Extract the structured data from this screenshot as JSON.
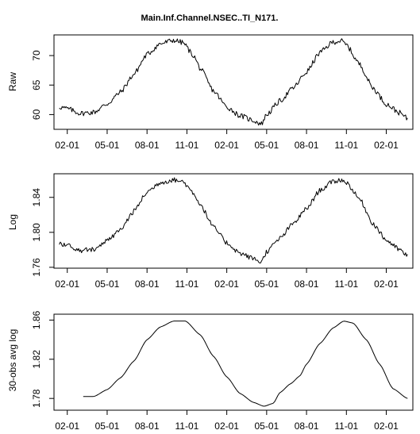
{
  "title": "Main.Inf.Channel.NSEC..TI_N171.",
  "chart_data": [
    {
      "type": "line",
      "ylabel": "Raw",
      "ylim": [
        57.5,
        73.5
      ],
      "yticks": [
        60,
        65,
        70
      ],
      "ytick_labels": [
        "60",
        "65",
        "70"
      ],
      "xlim": [
        0,
        27
      ],
      "xticks": [
        1,
        4,
        7,
        10,
        13,
        16,
        19,
        22,
        25
      ],
      "xtick_labels": [
        "02-01",
        "05-01",
        "08-01",
        "11-01",
        "02-01",
        "05-01",
        "08-01",
        "11-01",
        "02-01"
      ],
      "grid": false,
      "noise": 0.45,
      "points": [
        [
          0.4,
          61.3
        ],
        [
          1,
          61
        ],
        [
          2,
          60.2
        ],
        [
          3,
          60.4
        ],
        [
          4,
          61.8
        ],
        [
          5,
          63.8
        ],
        [
          6,
          66.8
        ],
        [
          7,
          70.2
        ],
        [
          8,
          72
        ],
        [
          9,
          72.6
        ],
        [
          9.7,
          72.2
        ],
        [
          10.5,
          70
        ],
        [
          11,
          67.8
        ],
        [
          12,
          64
        ],
        [
          13,
          61.3
        ],
        [
          14,
          59.8
        ],
        [
          15,
          59
        ],
        [
          15.6,
          58.4
        ],
        [
          16,
          60
        ],
        [
          17,
          62.3
        ],
        [
          18,
          64.5
        ],
        [
          19,
          67.2
        ],
        [
          20,
          70.5
        ],
        [
          21,
          72.3
        ],
        [
          21.6,
          72.5
        ],
        [
          22,
          71.8
        ],
        [
          23,
          68.5
        ],
        [
          24,
          64.5
        ],
        [
          25,
          61.8
        ],
        [
          26,
          60.3
        ],
        [
          26.6,
          59.3
        ]
      ]
    },
    {
      "type": "line",
      "ylabel": "Log",
      "ylim": [
        1.759,
        1.867
      ],
      "yticks": [
        1.76,
        1.8,
        1.84
      ],
      "ytick_labels": [
        "1.76",
        "1.80",
        "1.84"
      ],
      "xlim": [
        0,
        27
      ],
      "xticks": [
        1,
        4,
        7,
        10,
        13,
        16,
        19,
        22,
        25
      ],
      "xtick_labels": [
        "02-01",
        "05-01",
        "08-01",
        "11-01",
        "02-01",
        "05-01",
        "08-01",
        "11-01",
        "02-01"
      ],
      "grid": false,
      "noise": 0.0028,
      "points": [
        [
          0.4,
          1.788
        ],
        [
          1,
          1.785
        ],
        [
          2,
          1.779
        ],
        [
          3,
          1.781
        ],
        [
          4,
          1.79
        ],
        [
          5,
          1.803
        ],
        [
          6,
          1.824
        ],
        [
          7,
          1.846
        ],
        [
          8,
          1.857
        ],
        [
          9,
          1.86
        ],
        [
          9.7,
          1.858
        ],
        [
          10.5,
          1.845
        ],
        [
          11,
          1.832
        ],
        [
          12,
          1.806
        ],
        [
          13,
          1.788
        ],
        [
          14,
          1.776
        ],
        [
          15,
          1.77
        ],
        [
          15.6,
          1.766
        ],
        [
          16,
          1.778
        ],
        [
          17,
          1.793
        ],
        [
          18,
          1.81
        ],
        [
          19,
          1.827
        ],
        [
          20,
          1.848
        ],
        [
          21,
          1.858
        ],
        [
          21.6,
          1.86
        ],
        [
          22,
          1.857
        ],
        [
          23,
          1.838
        ],
        [
          24,
          1.81
        ],
        [
          25,
          1.791
        ],
        [
          26,
          1.78
        ],
        [
          26.6,
          1.773
        ]
      ]
    },
    {
      "type": "line",
      "ylabel": "30-obs avg log",
      "ylim": [
        1.768,
        1.866
      ],
      "yticks": [
        1.78,
        1.82,
        1.86
      ],
      "ytick_labels": [
        "1.78",
        "1.82",
        "1.86"
      ],
      "xlim": [
        0,
        27
      ],
      "xticks": [
        1,
        4,
        7,
        10,
        13,
        16,
        19,
        22,
        25
      ],
      "xtick_labels": [
        "02-01",
        "05-01",
        "08-01",
        "11-01",
        "02-01",
        "05-01",
        "08-01",
        "11-01",
        "02-01"
      ],
      "grid": false,
      "noise": 0,
      "points": [
        [
          2.2,
          1.782
        ],
        [
          3,
          1.782
        ],
        [
          4,
          1.789
        ],
        [
          5,
          1.801
        ],
        [
          6,
          1.818
        ],
        [
          7,
          1.84
        ],
        [
          8,
          1.853
        ],
        [
          9,
          1.859
        ],
        [
          9.9,
          1.859
        ],
        [
          11,
          1.845
        ],
        [
          12,
          1.823
        ],
        [
          13,
          1.802
        ],
        [
          14,
          1.785
        ],
        [
          15,
          1.776
        ],
        [
          15.8,
          1.772
        ],
        [
          16.5,
          1.775
        ],
        [
          17,
          1.786
        ],
        [
          17.8,
          1.795
        ],
        [
          18.5,
          1.803
        ],
        [
          19,
          1.815
        ],
        [
          20,
          1.836
        ],
        [
          21,
          1.852
        ],
        [
          21.8,
          1.859
        ],
        [
          22.5,
          1.857
        ],
        [
          23.5,
          1.84
        ],
        [
          24.5,
          1.815
        ],
        [
          25.5,
          1.79
        ],
        [
          26.6,
          1.78
        ]
      ]
    }
  ]
}
